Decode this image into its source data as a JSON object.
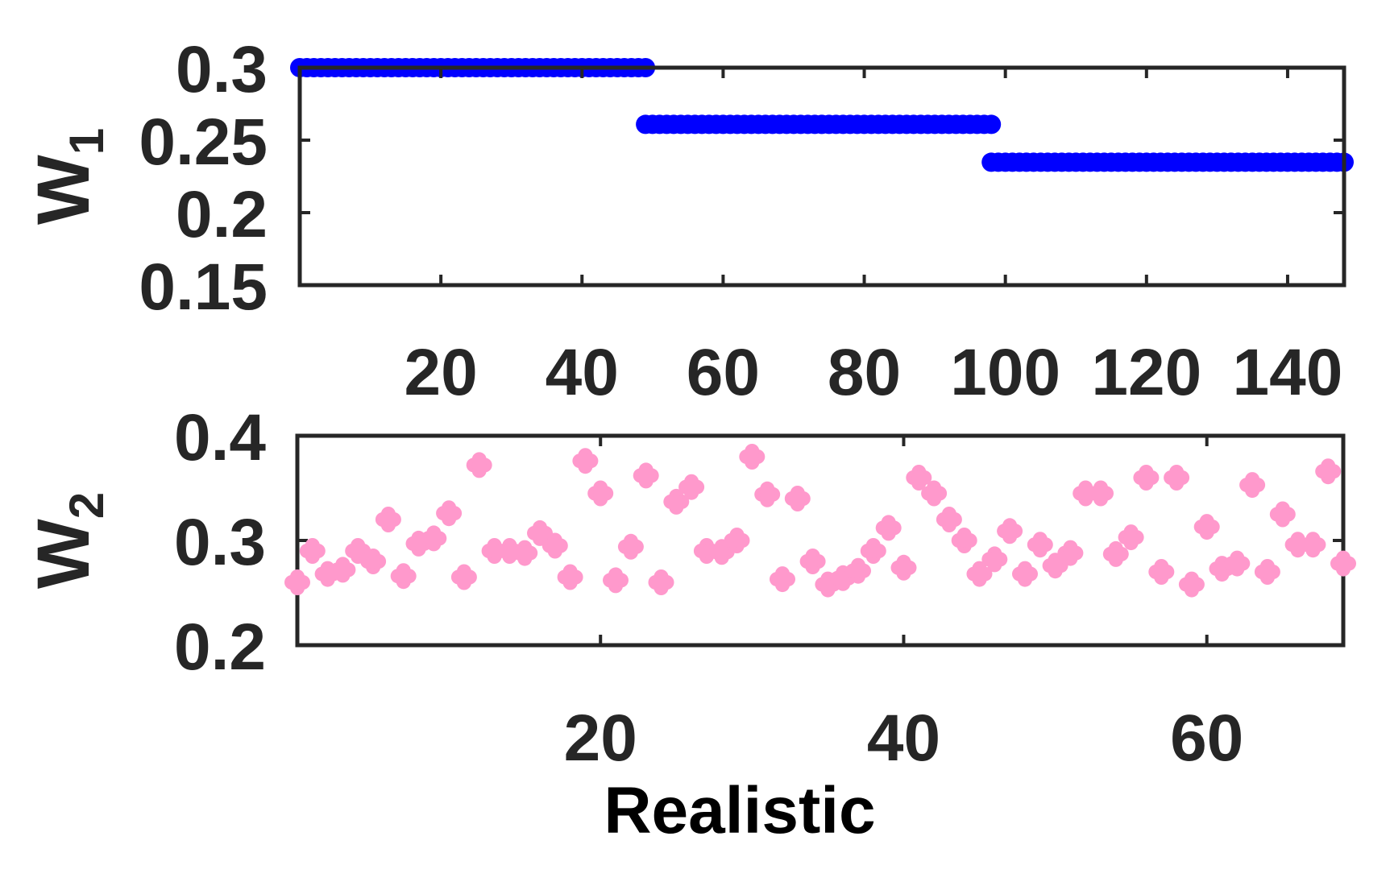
{
  "chart_data": [
    {
      "type": "scatter",
      "ylabel": "W",
      "ylabel_subscript": "1",
      "xlabel": "",
      "xlim": [
        0,
        148
      ],
      "ylim": [
        0.15,
        0.3
      ],
      "xticks": [
        20,
        40,
        60,
        80,
        100,
        120,
        140
      ],
      "xtick_labels": [
        "20",
        "40",
        "60",
        "80",
        "100",
        "120",
        "140"
      ],
      "yticks": [
        0.15,
        0.2,
        0.25,
        0.3
      ],
      "ytick_labels": [
        "0.15",
        "0.2",
        "0.25",
        "0.3"
      ],
      "grid": false,
      "color": "#0000ff",
      "segments": [
        {
          "x_start": 0,
          "x_end": 49,
          "y": 0.3
        },
        {
          "x_start": 49,
          "x_end": 98,
          "y": 0.2609
        },
        {
          "x_start": 98,
          "x_end": 148,
          "y": 0.2348
        }
      ]
    },
    {
      "type": "scatter",
      "ylabel": "W",
      "ylabel_subscript": "2",
      "xlabel": "Realistic",
      "xlim": [
        0,
        69
      ],
      "ylim": [
        0.2,
        0.4
      ],
      "xticks": [
        20,
        40,
        60
      ],
      "xtick_labels": [
        "20",
        "40",
        "60"
      ],
      "yticks": [
        0.2,
        0.3,
        0.4
      ],
      "ytick_labels": [
        "0.2",
        "0.3",
        "0.4"
      ],
      "grid": false,
      "color": "#ff99cc",
      "x": [
        0,
        1,
        2,
        3,
        4,
        5,
        6,
        7,
        8,
        9,
        10,
        11,
        12,
        13,
        14,
        15,
        16,
        17,
        18,
        19,
        20,
        21,
        22,
        23,
        24,
        25,
        26,
        27,
        28,
        29,
        30,
        31,
        32,
        33,
        34,
        35,
        36,
        37,
        38,
        39,
        40,
        41,
        42,
        43,
        44,
        45,
        46,
        47,
        48,
        49,
        50,
        51,
        52,
        53,
        54,
        55,
        56,
        57,
        58,
        59,
        60,
        61,
        62,
        63,
        64,
        65,
        66,
        67,
        68,
        69
      ],
      "y": [
        0.26,
        0.29,
        0.268,
        0.272,
        0.29,
        0.28,
        0.32,
        0.266,
        0.297,
        0.302,
        0.326,
        0.265,
        0.372,
        0.29,
        0.29,
        0.288,
        0.307,
        0.295,
        0.265,
        0.376,
        0.345,
        0.262,
        0.294,
        0.362,
        0.26,
        0.337,
        0.351,
        0.29,
        0.289,
        0.3,
        0.38,
        0.344,
        0.263,
        0.34,
        0.28,
        0.258,
        0.264,
        0.271,
        0.29,
        0.312,
        0.274,
        0.36,
        0.345,
        0.32,
        0.3,
        0.268,
        0.282,
        0.309,
        0.268,
        0.296,
        0.276,
        0.288,
        0.345,
        0.345,
        0.287,
        0.303,
        0.36,
        0.27,
        0.36,
        0.258,
        0.313,
        0.273,
        0.278,
        0.353,
        0.27,
        0.325,
        0.296,
        0.296,
        0.366,
        0.278
      ]
    }
  ]
}
